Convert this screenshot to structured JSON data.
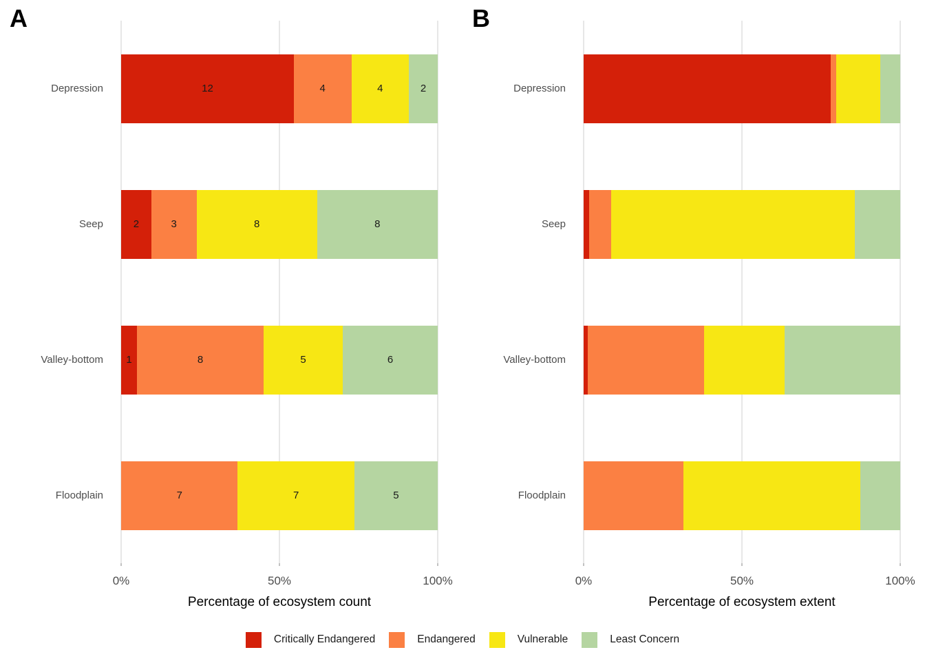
{
  "figure": {
    "background": "#ffffff",
    "gridline_color": "#e7e7e7",
    "axis_text_color": "#4d4d4d",
    "legend": {
      "position": "bottom",
      "items": [
        {
          "label": "Critically Endangered",
          "color": "#d42009"
        },
        {
          "label": "Endangered",
          "color": "#fb8043"
        },
        {
          "label": "Vulnerable",
          "color": "#f7e714"
        },
        {
          "label": "Least Concern",
          "color": "#b5d5a1"
        }
      ]
    }
  },
  "chart_data": [
    {
      "panel": "A",
      "type": "bar",
      "orientation": "horizontal",
      "stacked": true,
      "xlabel": "Percentage of ecosystem count",
      "categories": [
        "Depression",
        "Seep",
        "Valley-bottom",
        "Floodplain"
      ],
      "x_ticks": [
        "0%",
        "50%",
        "100%"
      ],
      "xlim": [
        0,
        100
      ],
      "value_type": "count",
      "bar_labels_shown": true,
      "grid": "vertical-only",
      "series": [
        {
          "name": "Critically Endangered",
          "color": "#d42009",
          "values": [
            12,
            2,
            1,
            0
          ]
        },
        {
          "name": "Endangered",
          "color": "#fb8043",
          "values": [
            4,
            3,
            8,
            7
          ]
        },
        {
          "name": "Vulnerable",
          "color": "#f7e714",
          "values": [
            4,
            8,
            5,
            7
          ]
        },
        {
          "name": "Least Concern",
          "color": "#b5d5a1",
          "values": [
            2,
            8,
            6,
            5
          ]
        }
      ]
    },
    {
      "panel": "B",
      "type": "bar",
      "orientation": "horizontal",
      "stacked": true,
      "xlabel": "Percentage of ecosystem extent",
      "categories": [
        "Depression",
        "Seep",
        "Valley-bottom",
        "Floodplain"
      ],
      "x_ticks": [
        "0%",
        "50%",
        "100%"
      ],
      "xlim": [
        0,
        100
      ],
      "value_type": "percent",
      "bar_labels_shown": false,
      "grid": "vertical-only",
      "series": [
        {
          "name": "Critically Endangered",
          "color": "#d42009",
          "values": [
            78.0,
            1.7,
            1.4,
            0
          ]
        },
        {
          "name": "Endangered",
          "color": "#fb8043",
          "values": [
            1.7,
            7.0,
            36.6,
            31.5
          ]
        },
        {
          "name": "Vulnerable",
          "color": "#f7e714",
          "values": [
            14.0,
            77.0,
            25.4,
            56.0
          ]
        },
        {
          "name": "Least Concern",
          "color": "#b5d5a1",
          "values": [
            6.3,
            14.3,
            36.6,
            12.5
          ]
        }
      ]
    }
  ]
}
